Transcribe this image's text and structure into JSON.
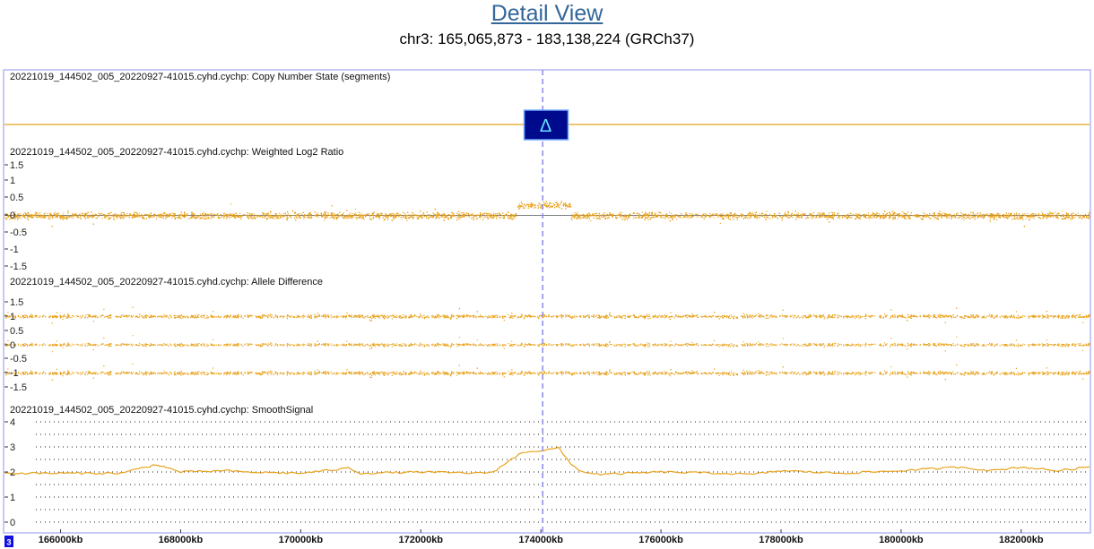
{
  "header": {
    "title": "Detail View",
    "subtitle": "chr3: 165,065,873 - 183,138,224 (GRCh37)"
  },
  "colors": {
    "data": "#E8A21C",
    "frame": "#B4B8F0",
    "cursor": "#8A8AE8",
    "cn_box": "#000A8C",
    "cn_glyph": "#66E0FF",
    "grid": "#222222",
    "chrom_box": "#1010E0"
  },
  "chromosome_label": "3",
  "cn_glyph": "Δ",
  "cursor_kb": 174030,
  "chart_data": [
    {
      "type": "line",
      "title": "20221019_144502_005_20220927-41015.cyhd.cychp: Copy Number State (segments)",
      "x_range_kb": [
        165066,
        183138
      ],
      "segments": [
        {
          "start_kb": 165066,
          "end_kb": 183138,
          "state": "normal"
        }
      ],
      "gain_marker_kb": 174080
    },
    {
      "type": "scatter",
      "title": "20221019_144502_005_20220927-41015.cyhd.cychp: Weighted Log2 Ratio",
      "ticks": [
        "1.5",
        "1",
        "0.5",
        "0",
        "-0.5",
        "-1",
        "-1.5"
      ],
      "ylim": [
        -1.9,
        1.8
      ],
      "baseline": 0,
      "bands": [
        {
          "center": 0,
          "spread": 0.1
        }
      ],
      "elevated_regions": [
        {
          "start_kb": 173600,
          "end_kb": 174500,
          "value": 0.3
        }
      ]
    },
    {
      "type": "scatter",
      "title": "20221019_144502_005_20220927-41015.cyhd.cychp: Allele Difference",
      "ticks": [
        "1.5",
        "1",
        "0.5",
        "0",
        "-0.5",
        "-1",
        "-1.5"
      ],
      "ylim": [
        -1.75,
        1.75
      ],
      "bands": [
        {
          "center": 1.0,
          "spread": 0.06
        },
        {
          "center": 0.0,
          "spread": 0.05
        },
        {
          "center": -1.0,
          "spread": 0.06
        }
      ]
    },
    {
      "type": "line",
      "title": "20221019_144502_005_20220927-41015.cyhd.cychp: SmoothSignal",
      "ticks": [
        "4",
        "3",
        "2",
        "1",
        "0"
      ],
      "ylim": [
        -0.3,
        4.2
      ],
      "x": [
        165066,
        166000,
        167000,
        167600,
        168000,
        168800,
        169000,
        170000,
        170800,
        171000,
        172000,
        173000,
        173200,
        173700,
        174000,
        174300,
        174500,
        174700,
        175000,
        176000,
        177000,
        177500,
        178000,
        179000,
        180000,
        181000,
        181500,
        182000,
        182600,
        183138
      ],
      "values": [
        1.95,
        1.95,
        1.95,
        2.3,
        2.0,
        2.05,
        2.0,
        1.95,
        2.15,
        1.95,
        2.0,
        1.95,
        2.0,
        2.8,
        2.85,
        2.95,
        2.3,
        2.0,
        1.9,
        2.0,
        1.95,
        1.9,
        2.05,
        1.95,
        2.05,
        2.2,
        2.05,
        2.2,
        2.05,
        2.2
      ]
    }
  ],
  "x_axis": {
    "ticks": [
      {
        "kb": 166000,
        "label": "166000kb"
      },
      {
        "kb": 168000,
        "label": "168000kb"
      },
      {
        "kb": 170000,
        "label": "170000kb"
      },
      {
        "kb": 172000,
        "label": "172000kb"
      },
      {
        "kb": 174000,
        "label": "174000kb"
      },
      {
        "kb": 176000,
        "label": "176000kb"
      },
      {
        "kb": 178000,
        "label": "178000kb"
      },
      {
        "kb": 180000,
        "label": "180000kb"
      },
      {
        "kb": 182000,
        "label": "182000kb"
      }
    ]
  }
}
